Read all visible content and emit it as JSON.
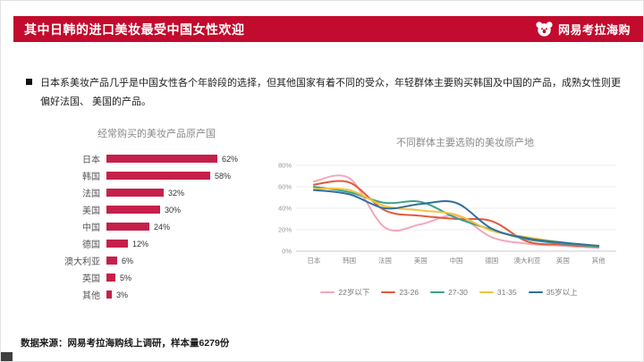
{
  "header": {
    "title": "其中日韩的进口美妆最受中国女性欢迎",
    "brand": "网易考拉海购"
  },
  "colors": {
    "accent": "#c20b2e",
    "bar": "#c5204a",
    "grid": "#ececec",
    "axis": "#c9c9c9"
  },
  "icons": {
    "brand_logo": "kaola-koala-face",
    "bullet_marker": "black-square"
  },
  "bullet": {
    "text": "日本系美妆产品几乎是中国女性各个年龄段的选择，但其他国家有着不同的受众，年轻群体主要购买韩国及中国的产品，成熟女性则更偏好法国、 美国的产品。"
  },
  "footer": {
    "source": "数据来源：网易考拉海购线上调研，样本量6279份"
  },
  "chart_data": [
    {
      "type": "bar",
      "orientation": "horizontal",
      "title": "经常购买的美妆产品原产国",
      "categories": [
        "日本",
        "韩国",
        "法国",
        "美国",
        "中国",
        "德国",
        "澳大利亚",
        "英国",
        "其他"
      ],
      "values": [
        62,
        58,
        32,
        30,
        24,
        12,
        6,
        5,
        3
      ],
      "value_suffix": "%",
      "bar_color": "#c5204a",
      "xlim": [
        0,
        70
      ],
      "grid": false
    },
    {
      "type": "line",
      "title": "不同群体主要选购的美妆原产地",
      "categories": [
        "日本",
        "韩国",
        "法国",
        "美国",
        "中国",
        "德国",
        "澳大利亚",
        "英国",
        "其他"
      ],
      "series": [
        {
          "name": "22岁以下",
          "color": "#f4a7b9",
          "values": [
            65,
            68,
            22,
            25,
            33,
            13,
            7,
            5,
            3
          ]
        },
        {
          "name": "23-26",
          "color": "#e2593c",
          "values": [
            62,
            64,
            38,
            33,
            30,
            28,
            9,
            6,
            4
          ]
        },
        {
          "name": "27-30",
          "color": "#3ba188",
          "values": [
            60,
            55,
            45,
            46,
            31,
            20,
            11,
            7,
            4
          ]
        },
        {
          "name": "31-35",
          "color": "#f3c33f",
          "values": [
            58,
            57,
            42,
            38,
            34,
            19,
            13,
            8,
            5
          ]
        },
        {
          "name": "35岁以上",
          "color": "#2f6f9e",
          "values": [
            57,
            53,
            40,
            44,
            45,
            21,
            12,
            8,
            5
          ]
        }
      ],
      "ylim": [
        0,
        80
      ],
      "yticks": [
        "0%",
        "20%",
        "40%",
        "60%",
        "80%"
      ],
      "grid": true,
      "legend_position": "bottom"
    }
  ]
}
